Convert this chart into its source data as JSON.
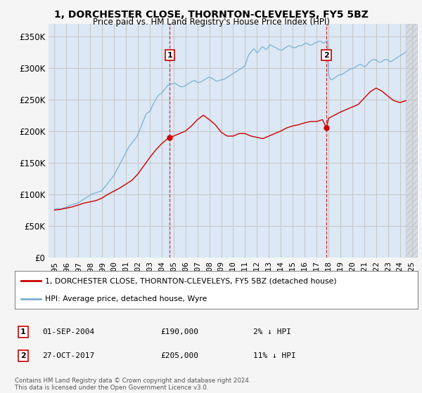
{
  "title": "1, DORCHESTER CLOSE, THORNTON-CLEVELEYS, FY5 5BZ",
  "subtitle": "Price paid vs. HM Land Registry's House Price Index (HPI)",
  "legend_line1": "1, DORCHESTER CLOSE, THORNTON-CLEVELEYS, FY5 5BZ (detached house)",
  "legend_line2": "HPI: Average price, detached house, Wyre",
  "sale1_label": "1",
  "sale1_date": "01-SEP-2004",
  "sale1_price": "£190,000",
  "sale1_hpi": "2% ↓ HPI",
  "sale2_label": "2",
  "sale2_date": "27-OCT-2017",
  "sale2_price": "£205,000",
  "sale2_hpi": "11% ↓ HPI",
  "footer": "Contains HM Land Registry data © Crown copyright and database right 2024.\nThis data is licensed under the Open Government Licence v3.0.",
  "background_color": "#f5f5f5",
  "plot_bg_color": "#dce8f5",
  "plot_future_color": "#e8e8e8",
  "grid_color": "#c8c8c8",
  "sale_color": "#cc0000",
  "hpi_color": "#7ab0d4",
  "marker_line_color": "#cc0000",
  "ylim": [
    0,
    370000
  ],
  "yticks": [
    0,
    50000,
    100000,
    150000,
    200000,
    250000,
    300000,
    350000
  ],
  "xlim_min": 1994.5,
  "xlim_max": 2025.5,
  "sale1_x": 2004.67,
  "sale1_y": 190000,
  "sale2_x": 2017.83,
  "sale2_y": 205000,
  "data_end_x": 2024.5,
  "hpi_x": [
    1995.0,
    1995.083,
    1995.167,
    1995.25,
    1995.333,
    1995.417,
    1995.5,
    1995.583,
    1995.667,
    1995.75,
    1995.833,
    1995.917,
    1996.0,
    1996.083,
    1996.167,
    1996.25,
    1996.333,
    1996.417,
    1996.5,
    1996.583,
    1996.667,
    1996.75,
    1996.833,
    1996.917,
    1997.0,
    1997.083,
    1997.167,
    1997.25,
    1997.333,
    1997.417,
    1997.5,
    1997.583,
    1997.667,
    1997.75,
    1997.833,
    1997.917,
    1998.0,
    1998.083,
    1998.167,
    1998.25,
    1998.333,
    1998.417,
    1998.5,
    1998.583,
    1998.667,
    1998.75,
    1998.833,
    1998.917,
    1999.0,
    1999.083,
    1999.167,
    1999.25,
    1999.333,
    1999.417,
    1999.5,
    1999.583,
    1999.667,
    1999.75,
    1999.833,
    1999.917,
    2000.0,
    2000.083,
    2000.167,
    2000.25,
    2000.333,
    2000.417,
    2000.5,
    2000.583,
    2000.667,
    2000.75,
    2000.833,
    2000.917,
    2001.0,
    2001.083,
    2001.167,
    2001.25,
    2001.333,
    2001.417,
    2001.5,
    2001.583,
    2001.667,
    2001.75,
    2001.833,
    2001.917,
    2002.0,
    2002.083,
    2002.167,
    2002.25,
    2002.333,
    2002.417,
    2002.5,
    2002.583,
    2002.667,
    2002.75,
    2002.833,
    2002.917,
    2003.0,
    2003.083,
    2003.167,
    2003.25,
    2003.333,
    2003.417,
    2003.5,
    2003.583,
    2003.667,
    2003.75,
    2003.833,
    2003.917,
    2004.0,
    2004.083,
    2004.167,
    2004.25,
    2004.333,
    2004.417,
    2004.5,
    2004.583,
    2004.667,
    2004.75,
    2004.833,
    2004.917,
    2005.0,
    2005.083,
    2005.167,
    2005.25,
    2005.333,
    2005.417,
    2005.5,
    2005.583,
    2005.667,
    2005.75,
    2005.833,
    2005.917,
    2006.0,
    2006.083,
    2006.167,
    2006.25,
    2006.333,
    2006.417,
    2006.5,
    2006.583,
    2006.667,
    2006.75,
    2006.833,
    2006.917,
    2007.0,
    2007.083,
    2007.167,
    2007.25,
    2007.333,
    2007.417,
    2007.5,
    2007.583,
    2007.667,
    2007.75,
    2007.833,
    2007.917,
    2008.0,
    2008.083,
    2008.167,
    2008.25,
    2008.333,
    2008.417,
    2008.5,
    2008.583,
    2008.667,
    2008.75,
    2008.833,
    2008.917,
    2009.0,
    2009.083,
    2009.167,
    2009.25,
    2009.333,
    2009.417,
    2009.5,
    2009.583,
    2009.667,
    2009.75,
    2009.833,
    2009.917,
    2010.0,
    2010.083,
    2010.167,
    2010.25,
    2010.333,
    2010.417,
    2010.5,
    2010.583,
    2010.667,
    2010.75,
    2010.833,
    2010.917,
    2011.0,
    2011.083,
    2011.167,
    2011.25,
    2011.333,
    2011.417,
    2011.5,
    2011.583,
    2011.667,
    2011.75,
    2011.833,
    2011.917,
    2012.0,
    2012.083,
    2012.167,
    2012.25,
    2012.333,
    2012.417,
    2012.5,
    2012.583,
    2012.667,
    2012.75,
    2012.833,
    2012.917,
    2013.0,
    2013.083,
    2013.167,
    2013.25,
    2013.333,
    2013.417,
    2013.5,
    2013.583,
    2013.667,
    2013.75,
    2013.833,
    2013.917,
    2014.0,
    2014.083,
    2014.167,
    2014.25,
    2014.333,
    2014.417,
    2014.5,
    2014.583,
    2014.667,
    2014.75,
    2014.833,
    2014.917,
    2015.0,
    2015.083,
    2015.167,
    2015.25,
    2015.333,
    2015.417,
    2015.5,
    2015.583,
    2015.667,
    2015.75,
    2015.833,
    2015.917,
    2016.0,
    2016.083,
    2016.167,
    2016.25,
    2016.333,
    2016.417,
    2016.5,
    2016.583,
    2016.667,
    2016.75,
    2016.833,
    2016.917,
    2017.0,
    2017.083,
    2017.167,
    2017.25,
    2017.333,
    2017.417,
    2017.5,
    2017.583,
    2017.667,
    2017.75,
    2017.833,
    2017.917,
    2018.0,
    2018.083,
    2018.167,
    2018.25,
    2018.333,
    2018.417,
    2018.5,
    2018.583,
    2018.667,
    2018.75,
    2018.833,
    2018.917,
    2019.0,
    2019.083,
    2019.167,
    2019.25,
    2019.333,
    2019.417,
    2019.5,
    2019.583,
    2019.667,
    2019.75,
    2019.833,
    2019.917,
    2020.0,
    2020.083,
    2020.167,
    2020.25,
    2020.333,
    2020.417,
    2020.5,
    2020.583,
    2020.667,
    2020.75,
    2020.833,
    2020.917,
    2021.0,
    2021.083,
    2021.167,
    2021.25,
    2021.333,
    2021.417,
    2021.5,
    2021.583,
    2021.667,
    2021.75,
    2021.833,
    2021.917,
    2022.0,
    2022.083,
    2022.167,
    2022.25,
    2022.333,
    2022.417,
    2022.5,
    2022.583,
    2022.667,
    2022.75,
    2022.833,
    2022.917,
    2023.0,
    2023.083,
    2023.167,
    2023.25,
    2023.333,
    2023.417,
    2023.5,
    2023.583,
    2023.667,
    2023.75,
    2023.833,
    2023.917,
    2024.0,
    2024.083,
    2024.167,
    2024.25,
    2024.333,
    2024.417,
    2024.5
  ],
  "hpi_y": [
    76000,
    76500,
    77000,
    77500,
    77200,
    76800,
    76500,
    77000,
    77500,
    78000,
    78500,
    79000,
    79500,
    80000,
    81000,
    82000,
    82500,
    83000,
    83500,
    84000,
    84500,
    85000,
    85500,
    86000,
    86500,
    87500,
    88500,
    89500,
    90500,
    91500,
    92500,
    93500,
    94500,
    95500,
    96500,
    97500,
    98500,
    99500,
    100500,
    101000,
    101500,
    102000,
    102500,
    103000,
    103500,
    104000,
    104500,
    105000,
    106000,
    108000,
    110000,
    112000,
    114000,
    116000,
    118000,
    120000,
    122000,
    124000,
    126000,
    128000,
    130000,
    133000,
    136000,
    139000,
    142000,
    145000,
    148000,
    151000,
    154000,
    157000,
    160000,
    163000,
    166000,
    169000,
    172000,
    175000,
    177000,
    179000,
    181000,
    183000,
    185000,
    187000,
    189000,
    191000,
    194000,
    198000,
    202000,
    206000,
    210000,
    214000,
    218000,
    222000,
    226000,
    228000,
    229000,
    230000,
    231000,
    234000,
    238000,
    241000,
    244000,
    247000,
    250000,
    253000,
    255000,
    257000,
    258000,
    259000,
    260000,
    262000,
    264000,
    266000,
    268000,
    270000,
    272000,
    273000,
    273500,
    274000,
    274500,
    275000,
    275500,
    276000,
    275000,
    274000,
    273000,
    272000,
    271000,
    270000,
    270000,
    270000,
    270500,
    271000,
    272000,
    273000,
    274000,
    275000,
    276000,
    277000,
    278000,
    279000,
    279500,
    280000,
    279000,
    278000,
    277000,
    277000,
    277000,
    277500,
    278000,
    279000,
    280000,
    281000,
    282000,
    283000,
    284000,
    285000,
    285000,
    284500,
    284000,
    283000,
    282000,
    281000,
    280000,
    279000,
    279000,
    279500,
    280000,
    280500,
    281000,
    281000,
    281500,
    282000,
    283000,
    284000,
    285000,
    286000,
    287000,
    288000,
    289000,
    290000,
    291000,
    292000,
    293000,
    294000,
    295000,
    296000,
    297000,
    298000,
    299000,
    300000,
    301000,
    302000,
    304000,
    308000,
    313000,
    318000,
    321000,
    323000,
    325000,
    327000,
    329000,
    330000,
    328000,
    326000,
    324000,
    325000,
    327000,
    329000,
    331000,
    333000,
    333000,
    332000,
    330000,
    329000,
    330000,
    332000,
    334000,
    336000,
    336000,
    335000,
    334000,
    333000,
    333000,
    332000,
    331000,
    330000,
    329000,
    328000,
    328000,
    328000,
    329000,
    330000,
    331000,
    332000,
    333000,
    334000,
    335000,
    335000,
    334000,
    333000,
    332000,
    332000,
    332000,
    332000,
    333000,
    334000,
    335000,
    335000,
    335000,
    335000,
    336000,
    337000,
    338000,
    339000,
    339000,
    338000,
    337000,
    336000,
    336000,
    336000,
    337000,
    338000,
    339000,
    340000,
    340000,
    341000,
    342000,
    342000,
    342000,
    341000,
    340000,
    339000,
    340000,
    341000,
    342000,
    343000,
    290000,
    285000,
    282000,
    281000,
    282000,
    283000,
    284000,
    285000,
    286000,
    287000,
    288000,
    289000,
    289000,
    289000,
    290000,
    291000,
    292000,
    293000,
    294000,
    295000,
    296000,
    297000,
    298000,
    299000,
    299000,
    299000,
    300000,
    301000,
    302000,
    303000,
    304000,
    305000,
    305000,
    305000,
    304000,
    303000,
    302000,
    302000,
    303000,
    305000,
    307000,
    309000,
    310000,
    311000,
    312000,
    313000,
    313000,
    313000,
    312000,
    311000,
    310000,
    309000,
    309000,
    309000,
    310000,
    311000,
    312000,
    313000,
    313000,
    313000,
    312000,
    311000,
    310000,
    310000,
    311000,
    312000,
    313000,
    314000,
    315000,
    316000,
    317000,
    318000,
    319000,
    320000,
    321000,
    322000,
    323000,
    324000,
    325000
  ],
  "price_x": [
    1995.0,
    1995.5,
    1996.0,
    1996.5,
    1997.0,
    1997.5,
    1998.0,
    1998.5,
    1999.0,
    1999.5,
    2000.0,
    2000.5,
    2001.0,
    2001.5,
    2002.0,
    2002.5,
    2003.0,
    2003.5,
    2004.0,
    2004.5,
    2004.67,
    2005.0,
    2005.5,
    2006.0,
    2006.5,
    2007.0,
    2007.5,
    2008.0,
    2008.5,
    2009.0,
    2009.5,
    2010.0,
    2010.5,
    2011.0,
    2011.5,
    2012.0,
    2012.5,
    2013.0,
    2013.5,
    2014.0,
    2014.5,
    2015.0,
    2015.5,
    2016.0,
    2016.5,
    2017.0,
    2017.5,
    2017.83,
    2018.0,
    2018.5,
    2019.0,
    2019.5,
    2020.0,
    2020.5,
    2021.0,
    2021.5,
    2022.0,
    2022.5,
    2023.0,
    2023.5,
    2024.0,
    2024.5
  ],
  "price_y": [
    75000,
    76000,
    78000,
    80000,
    83000,
    86000,
    88000,
    90000,
    94000,
    100000,
    105000,
    110000,
    116000,
    122000,
    132000,
    145000,
    158000,
    170000,
    180000,
    188000,
    190000,
    192000,
    196000,
    200000,
    208000,
    218000,
    225000,
    218000,
    210000,
    198000,
    192000,
    192000,
    196000,
    196000,
    192000,
    190000,
    188000,
    192000,
    196000,
    200000,
    205000,
    208000,
    210000,
    213000,
    215000,
    215000,
    218000,
    205000,
    220000,
    225000,
    230000,
    234000,
    238000,
    242000,
    252000,
    262000,
    268000,
    263000,
    255000,
    248000,
    245000,
    248000
  ]
}
